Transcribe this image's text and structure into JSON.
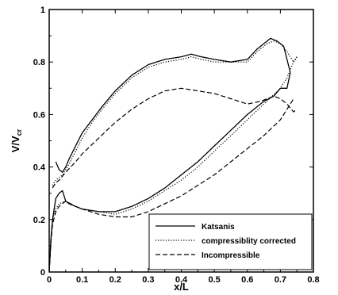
{
  "chart_data": {
    "type": "line",
    "title": "",
    "xlabel": "x/L",
    "ylabel": "V/V",
    "ylabel_subscript": "cr",
    "xlim": [
      0,
      0.8
    ],
    "ylim": [
      0,
      1
    ],
    "xticks": [
      "0",
      "0.1",
      "0.2",
      "0.3",
      "0.4",
      "0.5",
      "0.6",
      "0.7",
      "0.8"
    ],
    "yticks": [
      "0",
      "0.2",
      "0.4",
      "0.6",
      "0.8",
      "1"
    ],
    "grid": false,
    "legend_position": "bottom-right",
    "series": [
      {
        "name": "Katsanis",
        "style": "solid",
        "color": "#000000",
        "segments": [
          {
            "surface": "suction",
            "x": [
              0.02,
              0.03,
              0.04,
              0.05,
              0.06,
              0.08,
              0.1,
              0.13,
              0.16,
              0.2,
              0.25,
              0.3,
              0.35,
              0.4,
              0.43,
              0.46,
              0.5,
              0.55,
              0.6,
              0.63,
              0.65,
              0.67,
              0.69,
              0.71,
              0.73
            ],
            "y": [
              0.42,
              0.39,
              0.38,
              0.4,
              0.43,
              0.48,
              0.53,
              0.58,
              0.63,
              0.69,
              0.75,
              0.79,
              0.81,
              0.82,
              0.83,
              0.82,
              0.81,
              0.8,
              0.81,
              0.85,
              0.87,
              0.89,
              0.88,
              0.86,
              0.76
            ]
          },
          {
            "surface": "pressure",
            "x": [
              0.0,
              0.005,
              0.01,
              0.02,
              0.03,
              0.04,
              0.05,
              0.06,
              0.08,
              0.1,
              0.15,
              0.2,
              0.25,
              0.3,
              0.35,
              0.4,
              0.45,
              0.5,
              0.55,
              0.6,
              0.65,
              0.68,
              0.7,
              0.72,
              0.73
            ],
            "y": [
              0.0,
              0.12,
              0.2,
              0.28,
              0.3,
              0.31,
              0.27,
              0.26,
              0.25,
              0.24,
              0.23,
              0.23,
              0.25,
              0.28,
              0.32,
              0.37,
              0.42,
              0.48,
              0.54,
              0.6,
              0.65,
              0.67,
              0.7,
              0.7,
              0.76
            ]
          }
        ]
      },
      {
        "name": "compressiblity corrected",
        "style": "dotted",
        "color": "#000000",
        "segments": [
          {
            "surface": "suction",
            "x": [
              0.01,
              0.02,
              0.03,
              0.04,
              0.06,
              0.08,
              0.1,
              0.13,
              0.16,
              0.2,
              0.25,
              0.3,
              0.35,
              0.4,
              0.43,
              0.46,
              0.5,
              0.55,
              0.6,
              0.63,
              0.66,
              0.68,
              0.7,
              0.72,
              0.74,
              0.75
            ],
            "y": [
              0.33,
              0.35,
              0.36,
              0.37,
              0.41,
              0.46,
              0.51,
              0.57,
              0.62,
              0.68,
              0.74,
              0.78,
              0.8,
              0.81,
              0.82,
              0.81,
              0.8,
              0.8,
              0.8,
              0.84,
              0.87,
              0.88,
              0.87,
              0.84,
              0.8,
              0.82
            ]
          },
          {
            "surface": "pressure",
            "x": [
              0.0,
              0.005,
              0.01,
              0.02,
              0.03,
              0.05,
              0.08,
              0.1,
              0.15,
              0.2,
              0.25,
              0.3,
              0.35,
              0.4,
              0.45,
              0.5,
              0.55,
              0.6,
              0.65,
              0.7,
              0.72,
              0.74,
              0.75
            ],
            "y": [
              0.0,
              0.13,
              0.2,
              0.24,
              0.26,
              0.27,
              0.25,
              0.24,
              0.23,
              0.22,
              0.24,
              0.27,
              0.31,
              0.35,
              0.4,
              0.46,
              0.52,
              0.58,
              0.64,
              0.7,
              0.74,
              0.8,
              0.82
            ]
          }
        ]
      },
      {
        "name": "Incompressible",
        "style": "dashed",
        "color": "#000000",
        "segments": [
          {
            "surface": "suction",
            "x": [
              0.01,
              0.02,
              0.03,
              0.05,
              0.08,
              0.1,
              0.15,
              0.2,
              0.25,
              0.3,
              0.35,
              0.4,
              0.45,
              0.5,
              0.55,
              0.6,
              0.64,
              0.68,
              0.7,
              0.72,
              0.74,
              0.75
            ],
            "y": [
              0.32,
              0.34,
              0.35,
              0.38,
              0.42,
              0.45,
              0.51,
              0.57,
              0.62,
              0.66,
              0.69,
              0.7,
              0.69,
              0.68,
              0.66,
              0.64,
              0.65,
              0.67,
              0.66,
              0.64,
              0.61,
              0.62
            ]
          },
          {
            "surface": "pressure",
            "x": [
              0.0,
              0.005,
              0.01,
              0.02,
              0.03,
              0.05,
              0.08,
              0.1,
              0.15,
              0.2,
              0.25,
              0.3,
              0.35,
              0.4,
              0.45,
              0.5,
              0.55,
              0.6,
              0.65,
              0.7,
              0.72,
              0.74
            ],
            "y": [
              0.0,
              0.11,
              0.18,
              0.23,
              0.25,
              0.27,
              0.25,
              0.24,
              0.22,
              0.21,
              0.21,
              0.23,
              0.26,
              0.29,
              0.33,
              0.37,
              0.42,
              0.47,
              0.52,
              0.58,
              0.62,
              0.66
            ]
          }
        ]
      }
    ]
  }
}
